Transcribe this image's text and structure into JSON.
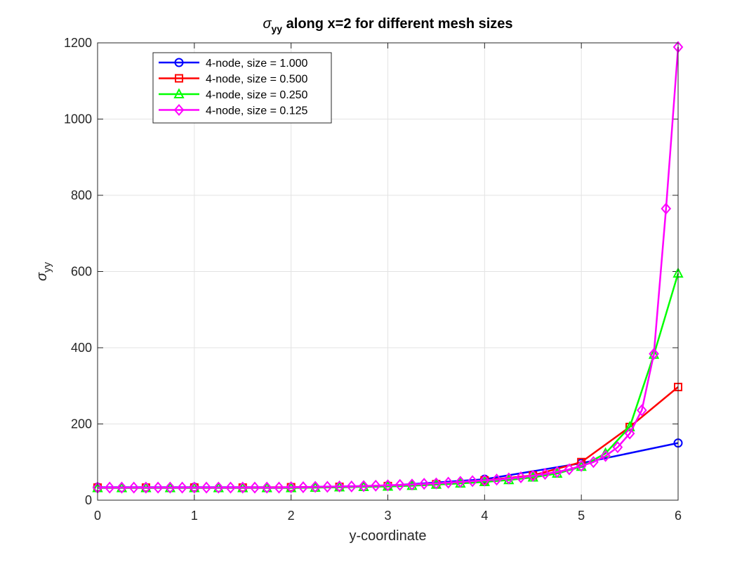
{
  "chart_data": {
    "type": "line",
    "title_symbol": "σ",
    "title_subscript": "yy",
    "title_rest": " along x=2 for different mesh sizes",
    "xlabel": "y-coordinate",
    "ylabel_symbol": "σ",
    "ylabel_subscript": "yy",
    "xlim": [
      0,
      6
    ],
    "ylim": [
      0,
      1200
    ],
    "xticks": [
      0,
      1,
      2,
      3,
      4,
      5,
      6
    ],
    "yticks": [
      0,
      200,
      400,
      600,
      800,
      1000,
      1200
    ],
    "grid": true,
    "legend_position": "top-left",
    "series": [
      {
        "name": "4-node, size = 1.000",
        "color": "#0000ff",
        "marker": "circle",
        "x": [
          0,
          1,
          2,
          3,
          4,
          5,
          6
        ],
        "y": [
          34,
          34,
          34,
          38,
          55,
          97,
          150
        ]
      },
      {
        "name": "4-node, size = 0.500",
        "color": "#ff0000",
        "marker": "square",
        "x": [
          0,
          0.5,
          1,
          1.5,
          2,
          2.5,
          3,
          3.5,
          4,
          4.5,
          5,
          5.5,
          6
        ],
        "y": [
          33,
          33,
          33,
          33,
          34,
          35,
          37,
          42,
          52,
          65,
          100,
          192,
          297
        ]
      },
      {
        "name": "4-node, size = 0.250",
        "color": "#00ff00",
        "marker": "triangle",
        "x": [
          0,
          0.25,
          0.5,
          0.75,
          1,
          1.25,
          1.5,
          1.75,
          2,
          2.25,
          2.5,
          2.75,
          3,
          3.25,
          3.5,
          3.75,
          4,
          4.25,
          4.5,
          4.75,
          5,
          5.25,
          5.5,
          5.75,
          6
        ],
        "y": [
          32,
          32,
          32,
          32,
          32,
          32,
          32,
          32,
          32,
          33,
          34,
          35,
          36,
          38,
          41,
          44,
          48,
          53,
          60,
          70,
          88,
          123,
          192,
          382,
          595
        ]
      },
      {
        "name": "4-node, size = 0.125",
        "color": "#ff00ff",
        "marker": "diamond",
        "x": [
          0,
          0.125,
          0.25,
          0.375,
          0.5,
          0.625,
          0.75,
          0.875,
          1,
          1.125,
          1.25,
          1.375,
          1.5,
          1.625,
          1.75,
          1.875,
          2,
          2.125,
          2.25,
          2.375,
          2.5,
          2.625,
          2.75,
          2.875,
          3,
          3.125,
          3.25,
          3.375,
          3.5,
          3.625,
          3.75,
          3.875,
          4,
          4.125,
          4.25,
          4.375,
          4.5,
          4.625,
          4.75,
          4.875,
          5,
          5.125,
          5.25,
          5.375,
          5.5,
          5.625,
          5.75,
          5.875,
          6
        ],
        "y": [
          33,
          33,
          33,
          33,
          33,
          33,
          33,
          33,
          33,
          33,
          33,
          33,
          33,
          33,
          33,
          33,
          34,
          34,
          35,
          35,
          36,
          36,
          37,
          38,
          39,
          40,
          41,
          43,
          44,
          46,
          48,
          50,
          52,
          54,
          57,
          60,
          64,
          69,
          74,
          81,
          90,
          100,
          116,
          139,
          175,
          236,
          384,
          765,
          1189
        ]
      }
    ]
  }
}
